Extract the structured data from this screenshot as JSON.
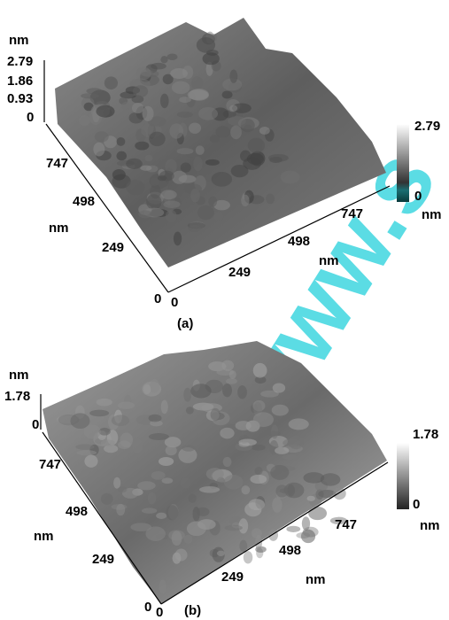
{
  "panels": [
    {
      "label": "(a)",
      "z_axis": {
        "unit": "nm",
        "ticks": [
          "2.79",
          "1.86",
          "0.93",
          "0"
        ]
      },
      "y_axis": {
        "unit": "nm",
        "ticks": [
          "747",
          "498",
          "249",
          "0"
        ]
      },
      "x_axis": {
        "unit": "nm",
        "ticks": [
          "0",
          "249",
          "498",
          "747"
        ]
      },
      "colorbar": {
        "max": "2.79",
        "min": "0",
        "unit": "nm"
      }
    },
    {
      "label": "(b)",
      "z_axis": {
        "unit": "nm",
        "ticks": [
          "1.78",
          "0"
        ]
      },
      "y_axis": {
        "unit": "nm",
        "ticks": [
          "747",
          "498",
          "249",
          "0"
        ]
      },
      "x_axis": {
        "unit": "nm",
        "ticks": [
          "0",
          "249",
          "498",
          "747"
        ]
      },
      "colorbar": {
        "max": "1.78",
        "min": "0",
        "unit": "nm"
      }
    }
  ],
  "watermark": "www.s"
}
